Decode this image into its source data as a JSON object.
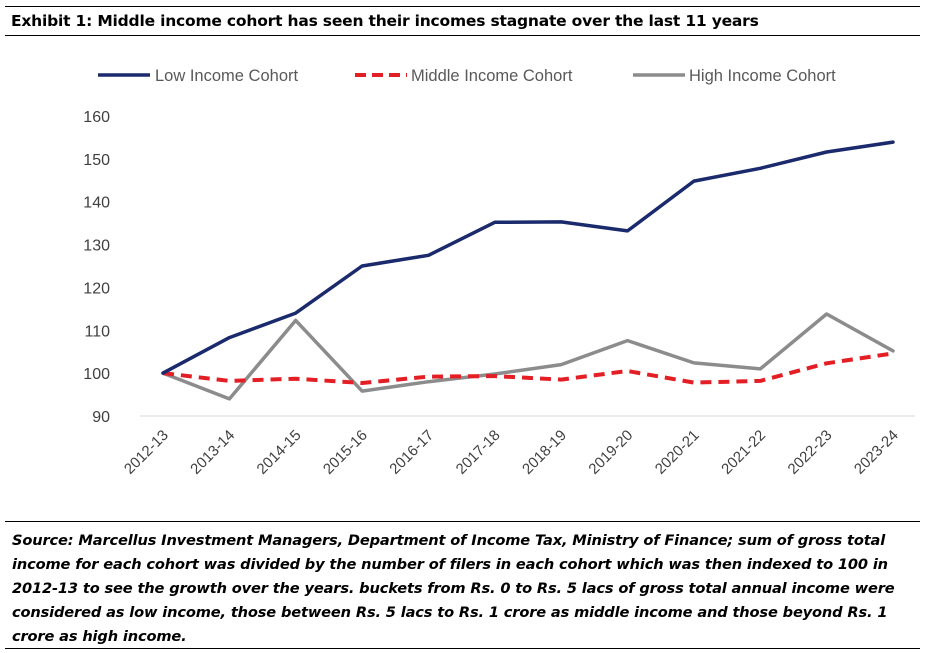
{
  "title": "Exhibit 1: Middle income cohort has seen their incomes stagnate over the last 11 years",
  "source_note": "Source: Marcellus Investment Managers, Department of Income Tax, Ministry of Finance;  sum of gross total income for each cohort was divided by the number of filers in each cohort which was then indexed to 100 in 2012-13 to see the growth over the years. buckets from Rs. 0 to Rs. 5 lacs of gross total annual income were considered as low income, those between Rs. 5 lacs to Rs. 1 crore as middle income and those beyond Rs. 1 crore as high income.",
  "chart_data": {
    "type": "line",
    "x": [
      "2012-13",
      "2013-14",
      "2014-15",
      "2015-16",
      "2016-17",
      "2017-18",
      "2018-19",
      "2019-20",
      "2020-21",
      "2021-22",
      "2022-23",
      "2023-24"
    ],
    "ylim": [
      90,
      160
    ],
    "yticks": [
      90,
      100,
      110,
      120,
      130,
      140,
      150,
      160
    ],
    "grid": false,
    "legend_position": "top",
    "series": [
      {
        "name": "Low Income Cohort",
        "color": "#1a2a6c",
        "dash": "solid",
        "values": [
          100,
          108.3,
          114,
          125,
          127.5,
          135.2,
          135.3,
          133.2,
          144.8,
          147.8,
          151.6,
          153.9
        ]
      },
      {
        "name": "Middle Income Cohort",
        "color": "#e31e24",
        "dash": "dashed",
        "values": [
          100,
          98.2,
          98.7,
          97.7,
          99.2,
          99.3,
          98.5,
          100.5,
          97.8,
          98.2,
          102.3,
          104.6
        ]
      },
      {
        "name": "High Income Cohort",
        "color": "#8c8c8c",
        "dash": "solid",
        "values": [
          100,
          94,
          112.3,
          95.8,
          98,
          99.8,
          102,
          107.6,
          102.4,
          101,
          113.8,
          105.2
        ]
      }
    ]
  }
}
